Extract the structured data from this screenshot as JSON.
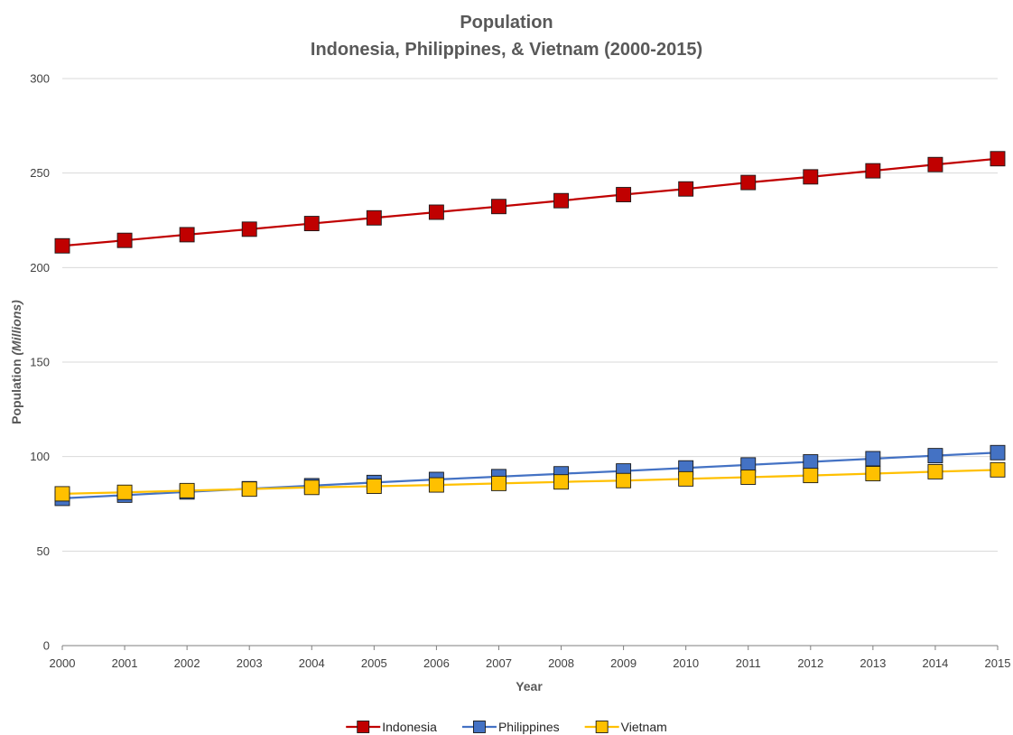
{
  "chart_data": {
    "type": "line",
    "title": "Population",
    "subtitle": "Indonesia, Philippines, & Vietnam (2000-2015)",
    "xlabel": "Year",
    "ylabel_prefix": "Population ",
    "ylabel_unit": "(Millions)",
    "x": [
      "2000",
      "2001",
      "2002",
      "2003",
      "2004",
      "2005",
      "2006",
      "2007",
      "2008",
      "2009",
      "2010",
      "2011",
      "2012",
      "2013",
      "2014",
      "2015"
    ],
    "ylim": [
      0,
      300
    ],
    "yticks": [
      0,
      50,
      100,
      150,
      200,
      250,
      300
    ],
    "grid": true,
    "legend_position": "bottom",
    "series": [
      {
        "name": "Indonesia",
        "color": "#c00000",
        "line_color": "#c00000",
        "marker": "square",
        "values": [
          211.5,
          214.4,
          217.4,
          220.3,
          223.3,
          226.3,
          229.3,
          232.3,
          235.4,
          238.6,
          241.6,
          245.0,
          248.0,
          251.2,
          254.5,
          257.6
        ]
      },
      {
        "name": "Philippines",
        "color": "#4472c4",
        "line_color": "#4472c4",
        "marker": "square",
        "values": [
          77.9,
          79.6,
          81.3,
          83.0,
          84.6,
          86.3,
          87.9,
          89.4,
          90.9,
          92.4,
          94.0,
          95.6,
          97.2,
          98.9,
          100.5,
          102.1
        ]
      },
      {
        "name": "Vietnam",
        "color": "#ffc000",
        "line_color": "#ffc000",
        "marker": "square",
        "values": [
          80.3,
          81.1,
          82.0,
          82.8,
          83.7,
          84.3,
          85.0,
          85.8,
          86.6,
          87.3,
          88.2,
          89.1,
          90.0,
          91.0,
          92.0,
          93.0
        ]
      }
    ]
  }
}
